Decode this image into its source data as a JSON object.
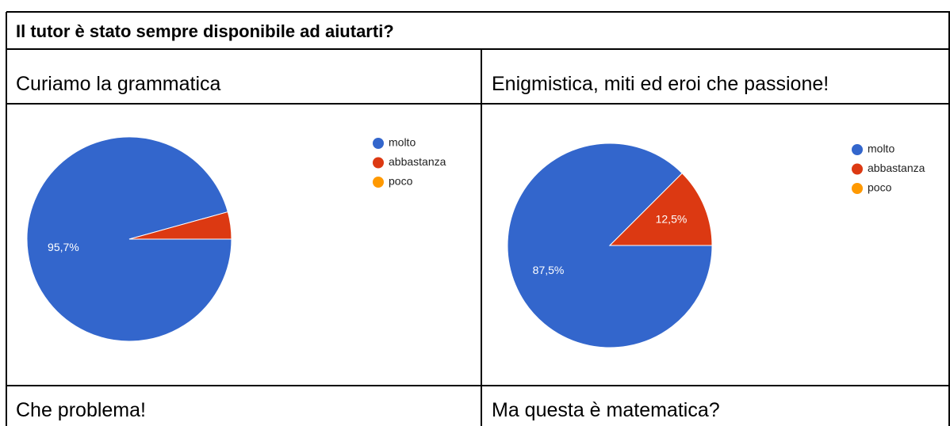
{
  "title": "Il tutor è stato sempre disponibile ad aiutarti?",
  "table": {
    "headers": [
      "Curiamo la grammatica",
      "Enigmistica, miti ed eroi che passione!"
    ],
    "footer": [
      "Che problema!",
      "Ma questa è matematica?"
    ]
  },
  "chart_data": [
    {
      "type": "pie",
      "categories": [
        "molto",
        "abbastanza",
        "poco"
      ],
      "values": [
        95.7,
        4.3,
        0
      ],
      "value_labels": [
        "95,7%",
        null,
        null
      ],
      "colors": [
        "#3366cc",
        "#dc3912",
        "#ff9900"
      ]
    },
    {
      "type": "pie",
      "categories": [
        "molto",
        "abbastanza",
        "poco"
      ],
      "values": [
        87.5,
        12.5,
        0
      ],
      "value_labels": [
        "87,5%",
        "12,5%",
        null
      ],
      "colors": [
        "#3366cc",
        "#dc3912",
        "#ff9900"
      ]
    }
  ]
}
